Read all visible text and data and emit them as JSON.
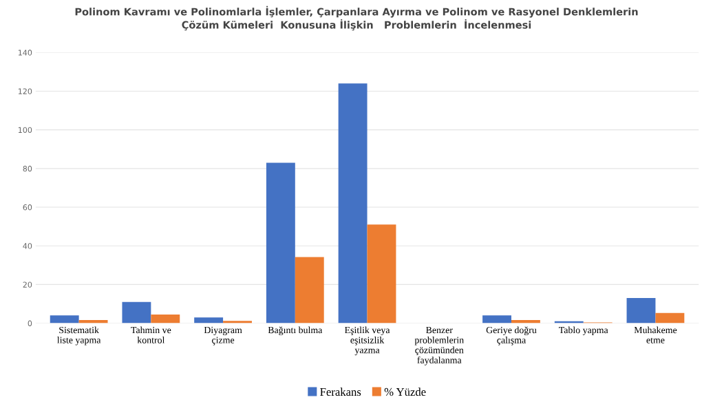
{
  "chart_data": {
    "type": "bar",
    "title": "Polinom Kavramı ve Polinomlarla İşlemler, Çarpanlara Ayırma ve Polinom ve Rasyonel Denklemlerin\nÇözüm Kümeleri  Konusuna İlişkin   Problemlerin  İncelenmesi",
    "categories": [
      "Sistematik\nliste yapma",
      "Tahmin ve\nkontrol",
      "Diyagram\nçizme",
      "Bağıntı bulma",
      "Eşitlik veya\neşitsizlik\nyazma",
      "Benzer\nproblemlerin\nçözümünden\nfaydalanma",
      "Geriye doğru\nçalışma",
      "Tablo yapma",
      "Muhakeme\netme"
    ],
    "series": [
      {
        "name": "Ferakans",
        "color": "#4472c4",
        "values": [
          4,
          11,
          3,
          83,
          124,
          0,
          4,
          1,
          13
        ]
      },
      {
        "name": "% Yüzde",
        "color": "#ed7d31",
        "values": [
          1.6,
          4.5,
          1.2,
          34.2,
          51.0,
          0,
          1.6,
          0.4,
          5.3
        ]
      }
    ],
    "ylim": [
      0,
      140
    ],
    "yticks": [
      0,
      20,
      40,
      60,
      80,
      100,
      120,
      140
    ],
    "grid": "y",
    "legend": "bottom"
  }
}
